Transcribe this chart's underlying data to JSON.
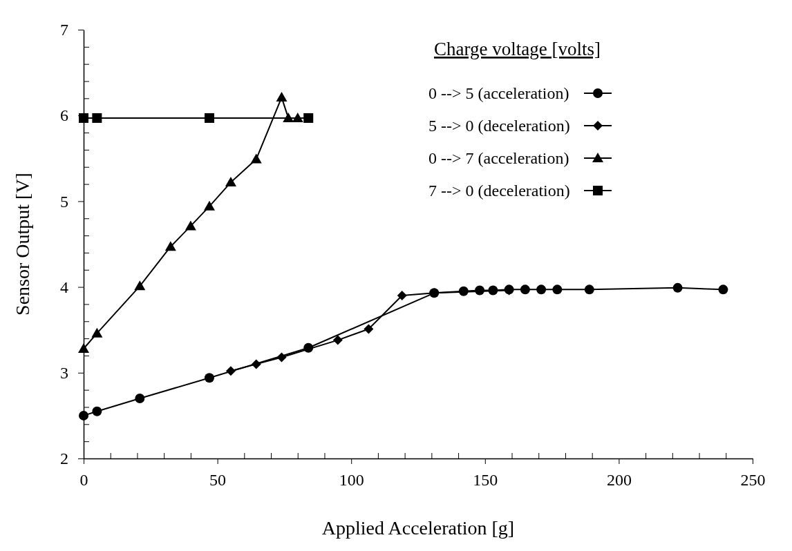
{
  "chart_data": {
    "type": "line",
    "xlabel": "Applied Acceleration [g]",
    "ylabel": "Sensor Output [V]",
    "legend_title": "Charge voltage [volts]",
    "legend": "top right",
    "grid": false,
    "line_style": "solid",
    "xlim": [
      0,
      250
    ],
    "ylim": [
      2,
      7
    ],
    "xticks": [
      0,
      {
        "value": 10,
        "label": null
      },
      {
        "value": 20,
        "label": null
      },
      {
        "value": 30,
        "label": null
      },
      {
        "value": 40,
        "label": null
      },
      50,
      {
        "value": 60,
        "label": null
      },
      {
        "value": 70,
        "label": null
      },
      {
        "value": 80,
        "label": null
      },
      {
        "value": 90,
        "label": null
      },
      100,
      {
        "value": 110,
        "label": null
      },
      {
        "value": 120,
        "label": null
      },
      {
        "value": 130,
        "label": null
      },
      {
        "value": 140,
        "label": null
      },
      150,
      {
        "value": 160,
        "label": null
      },
      {
        "value": 170,
        "label": null
      },
      {
        "value": 180,
        "label": null
      },
      {
        "value": 190,
        "label": null
      },
      200,
      {
        "value": 210,
        "label": null
      },
      {
        "value": 220,
        "label": null
      },
      {
        "value": 230,
        "label": null
      },
      {
        "value": 240,
        "label": null
      },
      250
    ],
    "yticks": [
      2,
      {
        "value": 2.2,
        "label": null
      },
      {
        "value": 2.4,
        "label": null
      },
      {
        "value": 2.6,
        "label": null
      },
      {
        "value": 2.8,
        "label": null
      },
      3,
      {
        "value": 3.2,
        "label": null
      },
      {
        "value": 3.4,
        "label": null
      },
      {
        "value": 3.6,
        "label": null
      },
      {
        "value": 3.8,
        "label": null
      },
      4,
      {
        "value": 4.2,
        "label": null
      },
      {
        "value": 4.4,
        "label": null
      },
      {
        "value": 4.6,
        "label": null
      },
      {
        "value": 4.8,
        "label": null
      },
      5,
      {
        "value": 5.2,
        "label": null
      },
      {
        "value": 5.4,
        "label": null
      },
      {
        "value": 5.6,
        "label": null
      },
      {
        "value": 5.8,
        "label": null
      },
      6,
      {
        "value": 6.2,
        "label": null
      },
      {
        "value": 6.4,
        "label": null
      },
      {
        "value": 6.6,
        "label": null
      },
      {
        "value": 6.8,
        "label": null
      },
      7
    ],
    "series": [
      {
        "name": "0 --> 5 (acceleration)",
        "color": "#000000",
        "marker": "circle",
        "x": [
          0,
          5,
          21,
          47,
          84,
          131,
          142,
          148,
          153,
          159,
          165,
          171,
          177,
          189,
          222,
          239
        ],
        "values": [
          2.5,
          2.55,
          2.7,
          2.94,
          3.29,
          3.93,
          3.95,
          3.96,
          3.96,
          3.97,
          3.97,
          3.97,
          3.97,
          3.97,
          3.99,
          3.97
        ]
      },
      {
        "name": "5 --> 0 (deceleration)",
        "color": "#000000",
        "marker": "diamond",
        "x": [
          55,
          64.5,
          74,
          95,
          106.5,
          119,
          131,
          159
        ],
        "values": [
          3.02,
          3.1,
          3.18,
          3.38,
          3.51,
          3.9,
          3.93,
          3.96
        ]
      },
      {
        "name": "0 --> 7 (acceleration)",
        "color": "#000000",
        "marker": "triangle",
        "x": [
          0,
          5,
          21,
          32.5,
          40,
          47,
          55,
          64.5,
          74,
          76.5,
          80
        ],
        "values": [
          3.28,
          3.46,
          4.01,
          4.47,
          4.71,
          4.94,
          5.22,
          5.49,
          6.21,
          5.97,
          5.97
        ]
      },
      {
        "name": "7 --> 0 (deceleration)",
        "color": "#000000",
        "marker": "square",
        "x": [
          0,
          5,
          47,
          84
        ],
        "values": [
          5.97,
          5.97,
          5.97,
          5.97
        ]
      }
    ]
  }
}
